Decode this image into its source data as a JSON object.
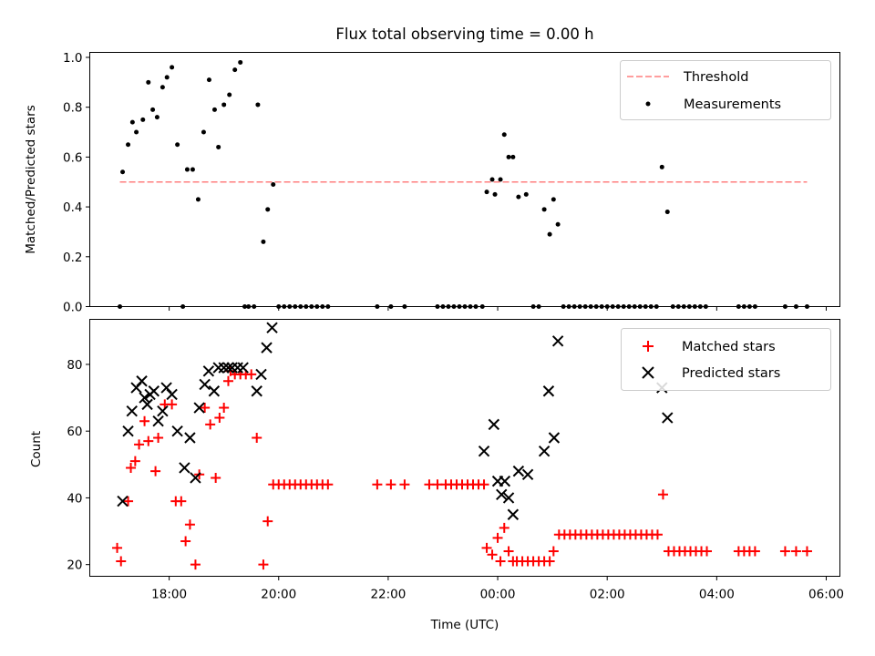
{
  "title": "Flux total observing time = 0.00 h",
  "colors": {
    "threshold": "#ff7f7f",
    "measurement": "#000000",
    "matched": "#ff0000",
    "predicted": "#000000"
  },
  "chart_data": [
    {
      "type": "scatter",
      "ylabel": "Matched/Predicted stars",
      "xlim": [
        16.55,
        30.25
      ],
      "ylim": [
        0,
        1.02
      ],
      "xticks": [
        18,
        20,
        22,
        24,
        26,
        28,
        30
      ],
      "yticks": [
        0.0,
        0.2,
        0.4,
        0.6,
        0.8,
        1.0
      ],
      "ytick_labels": [
        "0.0",
        "0.2",
        "0.4",
        "0.6",
        "0.8",
        "1.0"
      ],
      "legend": {
        "position": "top-right",
        "entries": [
          "Threshold",
          "Measurements"
        ]
      },
      "threshold": {
        "name": "Threshold",
        "y": 0.5,
        "x_range": [
          17.1,
          29.65
        ]
      },
      "series": [
        {
          "name": "Measurements",
          "points": [
            [
              17.1,
              0.0
            ],
            [
              17.15,
              0.54
            ],
            [
              17.25,
              0.65
            ],
            [
              17.33,
              0.74
            ],
            [
              17.4,
              0.7
            ],
            [
              17.52,
              0.75
            ],
            [
              17.62,
              0.9
            ],
            [
              17.7,
              0.79
            ],
            [
              17.78,
              0.76
            ],
            [
              17.88,
              0.88
            ],
            [
              17.96,
              0.92
            ],
            [
              18.05,
              0.96
            ],
            [
              18.15,
              0.65
            ],
            [
              18.25,
              0.0
            ],
            [
              18.33,
              0.55
            ],
            [
              18.43,
              0.55
            ],
            [
              18.53,
              0.43
            ],
            [
              18.63,
              0.7
            ],
            [
              18.73,
              0.91
            ],
            [
              18.83,
              0.79
            ],
            [
              18.9,
              0.64
            ],
            [
              19.0,
              0.81
            ],
            [
              19.1,
              0.85
            ],
            [
              19.2,
              0.95
            ],
            [
              19.3,
              0.98
            ],
            [
              19.38,
              0.0
            ],
            [
              19.45,
              0.0
            ],
            [
              19.55,
              0.0
            ],
            [
              19.62,
              0.81
            ],
            [
              19.72,
              0.26
            ],
            [
              19.8,
              0.39
            ],
            [
              19.9,
              0.49
            ],
            [
              20.0,
              0.0
            ],
            [
              20.1,
              0.0
            ],
            [
              20.2,
              0.0
            ],
            [
              20.3,
              0.0
            ],
            [
              20.4,
              0.0
            ],
            [
              20.5,
              0.0
            ],
            [
              20.6,
              0.0
            ],
            [
              20.7,
              0.0
            ],
            [
              20.8,
              0.0
            ],
            [
              20.9,
              0.0
            ],
            [
              21.8,
              0.0
            ],
            [
              22.05,
              0.0
            ],
            [
              22.3,
              0.0
            ],
            [
              22.9,
              0.0
            ],
            [
              23.0,
              0.0
            ],
            [
              23.1,
              0.0
            ],
            [
              23.2,
              0.0
            ],
            [
              23.3,
              0.0
            ],
            [
              23.4,
              0.0
            ],
            [
              23.5,
              0.0
            ],
            [
              23.6,
              0.0
            ],
            [
              23.72,
              0.0
            ],
            [
              23.8,
              0.46
            ],
            [
              23.9,
              0.51
            ],
            [
              23.95,
              0.45
            ],
            [
              24.05,
              0.51
            ],
            [
              24.12,
              0.69
            ],
            [
              24.2,
              0.6
            ],
            [
              24.28,
              0.6
            ],
            [
              24.38,
              0.44
            ],
            [
              24.52,
              0.45
            ],
            [
              24.65,
              0.0
            ],
            [
              24.75,
              0.0
            ],
            [
              24.85,
              0.39
            ],
            [
              24.95,
              0.29
            ],
            [
              25.02,
              0.43
            ],
            [
              25.1,
              0.33
            ],
            [
              25.2,
              0.0
            ],
            [
              25.3,
              0.0
            ],
            [
              25.4,
              0.0
            ],
            [
              25.5,
              0.0
            ],
            [
              25.6,
              0.0
            ],
            [
              25.7,
              0.0
            ],
            [
              25.8,
              0.0
            ],
            [
              25.9,
              0.0
            ],
            [
              26.0,
              0.0
            ],
            [
              26.1,
              0.0
            ],
            [
              26.2,
              0.0
            ],
            [
              26.3,
              0.0
            ],
            [
              26.4,
              0.0
            ],
            [
              26.5,
              0.0
            ],
            [
              26.6,
              0.0
            ],
            [
              26.7,
              0.0
            ],
            [
              26.8,
              0.0
            ],
            [
              26.9,
              0.0
            ],
            [
              27.0,
              0.56
            ],
            [
              27.1,
              0.38
            ],
            [
              27.2,
              0.0
            ],
            [
              27.3,
              0.0
            ],
            [
              27.4,
              0.0
            ],
            [
              27.5,
              0.0
            ],
            [
              27.6,
              0.0
            ],
            [
              27.7,
              0.0
            ],
            [
              27.8,
              0.0
            ],
            [
              28.4,
              0.0
            ],
            [
              28.5,
              0.0
            ],
            [
              28.6,
              0.0
            ],
            [
              28.7,
              0.0
            ],
            [
              29.25,
              0.0
            ],
            [
              29.45,
              0.0
            ],
            [
              29.65,
              0.0
            ]
          ]
        }
      ]
    },
    {
      "type": "scatter",
      "xlabel": "Time (UTC)",
      "ylabel": "Count",
      "xlim": [
        16.55,
        30.25
      ],
      "ylim": [
        16.5,
        93.5
      ],
      "xticks": [
        18,
        20,
        22,
        24,
        26,
        28,
        30
      ],
      "xtick_labels": [
        "18:00",
        "20:00",
        "22:00",
        "00:00",
        "02:00",
        "04:00",
        "06:00"
      ],
      "yticks": [
        20,
        40,
        60,
        80
      ],
      "ytick_labels": [
        "20",
        "40",
        "60",
        "80"
      ],
      "legend": {
        "position": "top-right",
        "entries": [
          "Matched stars",
          "Predicted stars"
        ]
      },
      "series": [
        {
          "name": "Matched stars",
          "marker": "plus",
          "points": [
            [
              17.05,
              25
            ],
            [
              17.12,
              21
            ],
            [
              17.25,
              39
            ],
            [
              17.3,
              49
            ],
            [
              17.38,
              51
            ],
            [
              17.45,
              56
            ],
            [
              17.55,
              63
            ],
            [
              17.62,
              57
            ],
            [
              17.75,
              48
            ],
            [
              17.8,
              58
            ],
            [
              17.92,
              68
            ],
            [
              18.05,
              68
            ],
            [
              18.12,
              39
            ],
            [
              18.22,
              39
            ],
            [
              18.3,
              27
            ],
            [
              18.38,
              32
            ],
            [
              18.48,
              20
            ],
            [
              18.55,
              47
            ],
            [
              18.65,
              67
            ],
            [
              18.75,
              62
            ],
            [
              18.85,
              46
            ],
            [
              18.92,
              64
            ],
            [
              19.0,
              67
            ],
            [
              19.08,
              75
            ],
            [
              19.12,
              78
            ],
            [
              19.2,
              77
            ],
            [
              19.3,
              77
            ],
            [
              19.4,
              77
            ],
            [
              19.5,
              77
            ],
            [
              19.6,
              58
            ],
            [
              19.72,
              20
            ],
            [
              19.8,
              33
            ],
            [
              19.9,
              44
            ],
            [
              20.0,
              44
            ],
            [
              20.1,
              44
            ],
            [
              20.2,
              44
            ],
            [
              20.3,
              44
            ],
            [
              20.4,
              44
            ],
            [
              20.5,
              44
            ],
            [
              20.6,
              44
            ],
            [
              20.7,
              44
            ],
            [
              20.8,
              44
            ],
            [
              20.9,
              44
            ],
            [
              21.8,
              44
            ],
            [
              22.05,
              44
            ],
            [
              22.3,
              44
            ],
            [
              22.75,
              44
            ],
            [
              22.9,
              44
            ],
            [
              23.05,
              44
            ],
            [
              23.15,
              44
            ],
            [
              23.25,
              44
            ],
            [
              23.35,
              44
            ],
            [
              23.45,
              44
            ],
            [
              23.55,
              44
            ],
            [
              23.65,
              44
            ],
            [
              23.75,
              44
            ],
            [
              23.8,
              25
            ],
            [
              23.9,
              23
            ],
            [
              24.0,
              28
            ],
            [
              24.05,
              21
            ],
            [
              24.12,
              31
            ],
            [
              24.2,
              24
            ],
            [
              24.28,
              21
            ],
            [
              24.35,
              21
            ],
            [
              24.45,
              21
            ],
            [
              24.55,
              21
            ],
            [
              24.65,
              21
            ],
            [
              24.75,
              21
            ],
            [
              24.85,
              21
            ],
            [
              24.95,
              21
            ],
            [
              25.02,
              24
            ],
            [
              25.12,
              29
            ],
            [
              25.22,
              29
            ],
            [
              25.32,
              29
            ],
            [
              25.42,
              29
            ],
            [
              25.52,
              29
            ],
            [
              25.62,
              29
            ],
            [
              25.72,
              29
            ],
            [
              25.82,
              29
            ],
            [
              25.92,
              29
            ],
            [
              26.02,
              29
            ],
            [
              26.12,
              29
            ],
            [
              26.22,
              29
            ],
            [
              26.32,
              29
            ],
            [
              26.42,
              29
            ],
            [
              26.52,
              29
            ],
            [
              26.62,
              29
            ],
            [
              26.72,
              29
            ],
            [
              26.82,
              29
            ],
            [
              26.92,
              29
            ],
            [
              27.02,
              41
            ],
            [
              27.12,
              24
            ],
            [
              27.22,
              24
            ],
            [
              27.32,
              24
            ],
            [
              27.42,
              24
            ],
            [
              27.52,
              24
            ],
            [
              27.62,
              24
            ],
            [
              27.72,
              24
            ],
            [
              27.82,
              24
            ],
            [
              28.4,
              24
            ],
            [
              28.5,
              24
            ],
            [
              28.6,
              24
            ],
            [
              28.7,
              24
            ],
            [
              29.25,
              24
            ],
            [
              29.45,
              24
            ],
            [
              29.65,
              24
            ]
          ]
        },
        {
          "name": "Predicted stars",
          "marker": "x",
          "points": [
            [
              17.15,
              39
            ],
            [
              17.25,
              60
            ],
            [
              17.32,
              66
            ],
            [
              17.4,
              73
            ],
            [
              17.5,
              75
            ],
            [
              17.55,
              70
            ],
            [
              17.6,
              68
            ],
            [
              17.65,
              71
            ],
            [
              17.72,
              72
            ],
            [
              17.8,
              63
            ],
            [
              17.88,
              66
            ],
            [
              17.95,
              73
            ],
            [
              18.05,
              71
            ],
            [
              18.15,
              60
            ],
            [
              18.28,
              49
            ],
            [
              18.38,
              58
            ],
            [
              18.48,
              46
            ],
            [
              18.55,
              67
            ],
            [
              18.65,
              74
            ],
            [
              18.72,
              78
            ],
            [
              18.82,
              72
            ],
            [
              18.9,
              79
            ],
            [
              19.0,
              79
            ],
            [
              19.08,
              79
            ],
            [
              19.15,
              79
            ],
            [
              19.25,
              79
            ],
            [
              19.35,
              79
            ],
            [
              19.6,
              72
            ],
            [
              19.68,
              77
            ],
            [
              19.78,
              85
            ],
            [
              19.88,
              91
            ],
            [
              23.75,
              54
            ],
            [
              23.93,
              62
            ],
            [
              24.0,
              45
            ],
            [
              24.07,
              41
            ],
            [
              24.13,
              45
            ],
            [
              24.2,
              40
            ],
            [
              24.28,
              35
            ],
            [
              24.38,
              48
            ],
            [
              24.55,
              47
            ],
            [
              24.85,
              54
            ],
            [
              24.93,
              72
            ],
            [
              25.03,
              58
            ],
            [
              25.1,
              87
            ],
            [
              27.0,
              73
            ],
            [
              27.1,
              64
            ]
          ]
        }
      ]
    }
  ]
}
